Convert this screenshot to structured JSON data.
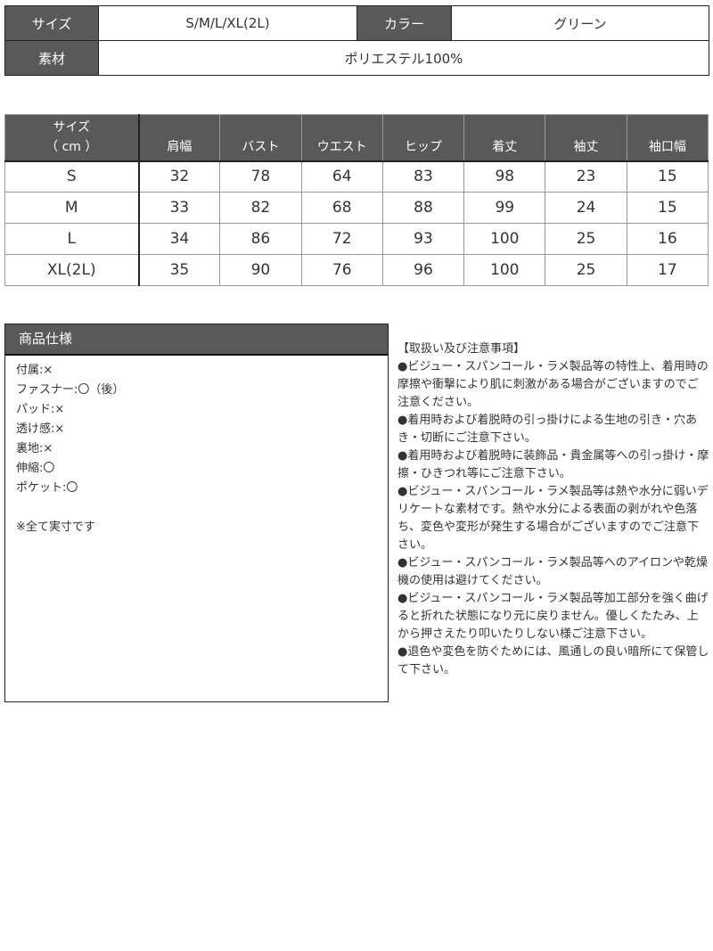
{
  "info": {
    "size_label": "サイズ",
    "size_value": "S/M/L/XL(2L)",
    "color_label": "カラー",
    "color_value": "グリーン",
    "material_label": "素材",
    "material_value": "ポリエステル100%"
  },
  "size_table": {
    "header_line1": "サイズ",
    "header_line2": "（ cm ）",
    "columns": [
      "肩幅",
      "バスト",
      "ウエスト",
      "ヒップ",
      "着丈",
      "袖丈",
      "袖口幅"
    ],
    "rows": [
      {
        "size": "S",
        "values": [
          "32",
          "78",
          "64",
          "83",
          "98",
          "23",
          "15"
        ]
      },
      {
        "size": "M",
        "values": [
          "33",
          "82",
          "68",
          "88",
          "99",
          "24",
          "15"
        ]
      },
      {
        "size": "L",
        "values": [
          "34",
          "86",
          "72",
          "93",
          "100",
          "25",
          "16"
        ]
      },
      {
        "size": "XL(2L)",
        "values": [
          "35",
          "90",
          "76",
          "96",
          "100",
          "25",
          "17"
        ]
      }
    ]
  },
  "spec": {
    "title": "商品仕様",
    "items": [
      "付属:×",
      "ファスナー:〇（後）",
      "パッド:×",
      "透け感:×",
      "裏地:×",
      "伸縮:〇",
      "ポケット:〇"
    ],
    "note": "※全て実寸です"
  },
  "notes": {
    "title": "【取扱い及び注意事項】",
    "items": [
      "●ビジュー・スパンコール・ラメ製品等の特性上、着用時の摩擦や衝撃により肌に刺激がある場合がございますのでご注意ください。",
      "●着用時および着脱時の引っ掛けによる生地の引き・穴あき・切断にご注意下さい。",
      "●着用時および着脱時に装飾品・貴金属等への引っ掛け・摩擦・ひきつれ等にご注意下さい。",
      "●ビジュー・スパンコール・ラメ製品等は熱や水分に弱いデリケートな素材です。熱や水分による表面の剥がれや色落ち、変色や変形が発生する場合がございますのでご注意下さい。",
      "●ビジュー・スパンコール・ラメ製品等へのアイロンや乾燥機の使用は避けてください。",
      "●ビジュー・スパンコール・ラメ製品等加工部分を強く曲げると折れた状態になり元に戻りません。優しくたたみ、上から押さえたり叩いたりしない様ご注意下さい。",
      "●退色や変色を防ぐためには、風通しの良い暗所にて保管して下さい。"
    ]
  }
}
